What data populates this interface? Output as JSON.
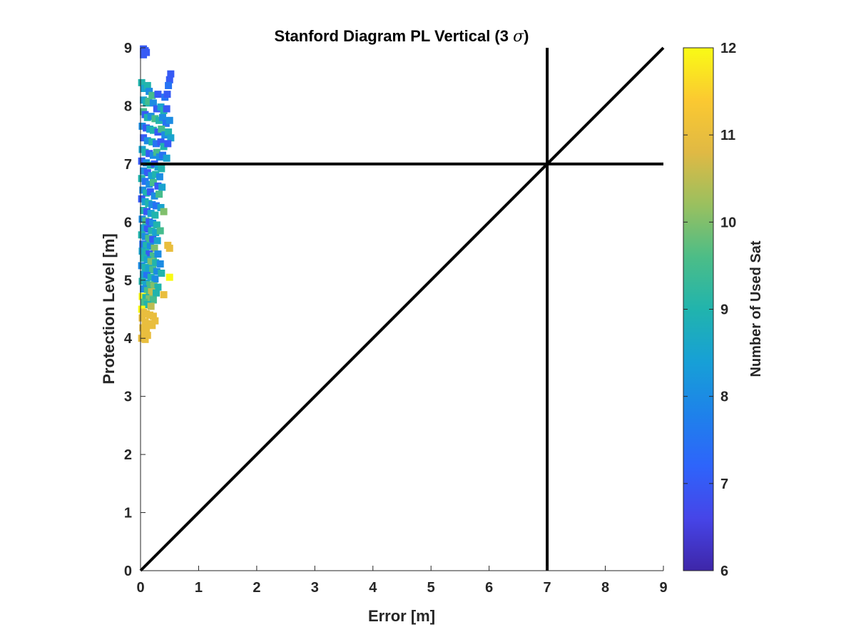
{
  "chart_data": {
    "type": "scatter",
    "title": "Stanford Diagram PL Vertical (3",
    "title_symbol": "σ",
    "title_suffix": ")",
    "xlabel": "Error [m]",
    "ylabel": "Protection Level [m]",
    "xlim": [
      0,
      9
    ],
    "ylim": [
      0,
      9
    ],
    "xticks": [
      "0",
      "1",
      "2",
      "3",
      "4",
      "5",
      "6",
      "7",
      "8",
      "9"
    ],
    "yticks": [
      "0",
      "1",
      "2",
      "3",
      "4",
      "5",
      "6",
      "7",
      "8",
      "9"
    ],
    "alert_limit": 7,
    "reference_lines": [
      {
        "kind": "diagonal",
        "from": [
          0,
          0
        ],
        "to": [
          9,
          9
        ]
      },
      {
        "kind": "vertical",
        "x": 7
      },
      {
        "kind": "horizontal",
        "y": 7
      }
    ],
    "colorbar": {
      "label": "Number of Used Sat",
      "range": [
        6,
        12
      ],
      "ticks": [
        "6",
        "7",
        "8",
        "9",
        "10",
        "11",
        "12"
      ],
      "colormap": "parula"
    },
    "points": [
      [
        0.05,
        8.98,
        7
      ],
      [
        0.08,
        8.95,
        7
      ],
      [
        0.05,
        8.88,
        7
      ],
      [
        0.1,
        8.92,
        7
      ],
      [
        0.52,
        8.55,
        7
      ],
      [
        0.5,
        8.45,
        7
      ],
      [
        0.48,
        8.35,
        7.5
      ],
      [
        0.02,
        8.4,
        9
      ],
      [
        0.06,
        8.3,
        8.5
      ],
      [
        0.12,
        8.35,
        9
      ],
      [
        0.15,
        8.25,
        8
      ],
      [
        0.2,
        8.18,
        9.5
      ],
      [
        0.3,
        8.2,
        7
      ],
      [
        0.42,
        8.15,
        7.5
      ],
      [
        0.46,
        8.2,
        7
      ],
      [
        0.05,
        8.1,
        8.5
      ],
      [
        0.1,
        8.05,
        9
      ],
      [
        0.14,
        8.08,
        9.5
      ],
      [
        0.22,
        8.05,
        8
      ],
      [
        0.28,
        7.95,
        7
      ],
      [
        0.35,
        7.98,
        8.5
      ],
      [
        0.4,
        7.92,
        9
      ],
      [
        0.45,
        7.95,
        7
      ],
      [
        0.05,
        7.9,
        9.5
      ],
      [
        0.08,
        7.85,
        7
      ],
      [
        0.12,
        7.8,
        9
      ],
      [
        0.18,
        7.82,
        8
      ],
      [
        0.25,
        7.78,
        9.5
      ],
      [
        0.32,
        7.75,
        9
      ],
      [
        0.38,
        7.8,
        8
      ],
      [
        0.44,
        7.7,
        7.5
      ],
      [
        0.5,
        7.75,
        8
      ],
      [
        0.03,
        7.65,
        8
      ],
      [
        0.1,
        7.62,
        7
      ],
      [
        0.16,
        7.6,
        8.5
      ],
      [
        0.22,
        7.58,
        9
      ],
      [
        0.3,
        7.55,
        7
      ],
      [
        0.36,
        7.6,
        9.5
      ],
      [
        0.42,
        7.5,
        8
      ],
      [
        0.48,
        7.55,
        9
      ],
      [
        0.52,
        7.45,
        8.5
      ],
      [
        0.05,
        7.45,
        7
      ],
      [
        0.12,
        7.4,
        8
      ],
      [
        0.2,
        7.38,
        9
      ],
      [
        0.27,
        7.35,
        7.5
      ],
      [
        0.35,
        7.38,
        7
      ],
      [
        0.4,
        7.3,
        9
      ],
      [
        0.47,
        7.35,
        7
      ],
      [
        0.03,
        7.25,
        8.5
      ],
      [
        0.08,
        7.2,
        9
      ],
      [
        0.15,
        7.18,
        7
      ],
      [
        0.22,
        7.15,
        8
      ],
      [
        0.28,
        7.2,
        9.5
      ],
      [
        0.33,
        7.12,
        8
      ],
      [
        0.38,
        7.15,
        7.5
      ],
      [
        0.45,
        7.1,
        8.5
      ],
      [
        0.02,
        7.05,
        7
      ],
      [
        0.1,
        7.02,
        8
      ],
      [
        0.17,
        6.98,
        9
      ],
      [
        0.24,
        7.0,
        7
      ],
      [
        0.3,
        6.95,
        8.5
      ],
      [
        0.36,
        6.92,
        9
      ],
      [
        0.05,
        6.88,
        8
      ],
      [
        0.12,
        6.85,
        7
      ],
      [
        0.19,
        6.8,
        8.5
      ],
      [
        0.26,
        6.82,
        9
      ],
      [
        0.33,
        6.78,
        8
      ],
      [
        0.02,
        6.75,
        9
      ],
      [
        0.08,
        6.7,
        7.5
      ],
      [
        0.15,
        6.65,
        8
      ],
      [
        0.22,
        6.68,
        9.5
      ],
      [
        0.3,
        6.62,
        7
      ],
      [
        0.37,
        6.6,
        8.5
      ],
      [
        0.04,
        6.55,
        8
      ],
      [
        0.1,
        6.5,
        9
      ],
      [
        0.17,
        6.52,
        7
      ],
      [
        0.24,
        6.45,
        8
      ],
      [
        0.32,
        6.48,
        9.5
      ],
      [
        0.02,
        6.4,
        7
      ],
      [
        0.08,
        6.35,
        8.5
      ],
      [
        0.14,
        6.32,
        9
      ],
      [
        0.2,
        6.3,
        8
      ],
      [
        0.27,
        6.28,
        7.5
      ],
      [
        0.35,
        6.25,
        8.5
      ],
      [
        0.05,
        6.2,
        9
      ],
      [
        0.11,
        6.18,
        7
      ],
      [
        0.18,
        6.15,
        8.5
      ],
      [
        0.25,
        6.12,
        9
      ],
      [
        0.4,
        6.18,
        10
      ],
      [
        0.03,
        6.05,
        8
      ],
      [
        0.09,
        6.02,
        9.5
      ],
      [
        0.15,
        6.0,
        7
      ],
      [
        0.21,
        5.98,
        8
      ],
      [
        0.28,
        5.95,
        9
      ],
      [
        0.05,
        5.9,
        8.5
      ],
      [
        0.12,
        5.88,
        7
      ],
      [
        0.19,
        5.85,
        9
      ],
      [
        0.26,
        5.82,
        8.5
      ],
      [
        0.34,
        5.85,
        9.5
      ],
      [
        0.02,
        5.78,
        9
      ],
      [
        0.08,
        5.75,
        8
      ],
      [
        0.14,
        5.72,
        9.5
      ],
      [
        0.21,
        5.7,
        7
      ],
      [
        0.29,
        5.68,
        8.5
      ],
      [
        0.04,
        5.62,
        7.5
      ],
      [
        0.1,
        5.6,
        9
      ],
      [
        0.17,
        5.58,
        8
      ],
      [
        0.24,
        5.55,
        10
      ],
      [
        0.47,
        5.6,
        11
      ],
      [
        0.5,
        5.55,
        11
      ],
      [
        0.03,
        5.5,
        8.5
      ],
      [
        0.09,
        5.48,
        9
      ],
      [
        0.15,
        5.45,
        7
      ],
      [
        0.22,
        5.42,
        9.5
      ],
      [
        0.3,
        5.45,
        8
      ],
      [
        0.05,
        5.38,
        9
      ],
      [
        0.12,
        5.35,
        8.5
      ],
      [
        0.18,
        5.32,
        10
      ],
      [
        0.26,
        5.3,
        9
      ],
      [
        0.34,
        5.28,
        8
      ],
      [
        0.02,
        5.25,
        8
      ],
      [
        0.08,
        5.22,
        9
      ],
      [
        0.14,
        5.2,
        8.5
      ],
      [
        0.21,
        5.18,
        9.5
      ],
      [
        0.28,
        5.15,
        8
      ],
      [
        0.36,
        5.12,
        9
      ],
      [
        0.05,
        5.1,
        8.5
      ],
      [
        0.11,
        5.08,
        7.5
      ],
      [
        0.18,
        5.05,
        9
      ],
      [
        0.25,
        5.02,
        8
      ],
      [
        0.5,
        5.05,
        12
      ],
      [
        0.03,
        4.98,
        9
      ],
      [
        0.1,
        4.95,
        8.5
      ],
      [
        0.16,
        4.92,
        9.5
      ],
      [
        0.23,
        4.9,
        10
      ],
      [
        0.3,
        4.88,
        9
      ],
      [
        0.05,
        4.85,
        8
      ],
      [
        0.12,
        4.82,
        9.5
      ],
      [
        0.19,
        4.8,
        10.5
      ],
      [
        0.27,
        4.78,
        9
      ],
      [
        0.4,
        4.75,
        11
      ],
      [
        0.03,
        4.72,
        12
      ],
      [
        0.09,
        4.7,
        9
      ],
      [
        0.15,
        4.68,
        10
      ],
      [
        0.22,
        4.66,
        9.5
      ],
      [
        0.06,
        4.62,
        9.5
      ],
      [
        0.12,
        4.58,
        9
      ],
      [
        0.18,
        4.55,
        10.5
      ],
      [
        0.02,
        4.5,
        12
      ],
      [
        0.05,
        4.45,
        11
      ],
      [
        0.1,
        4.42,
        11
      ],
      [
        0.16,
        4.4,
        11
      ],
      [
        0.22,
        4.38,
        11
      ],
      [
        0.25,
        4.3,
        11
      ],
      [
        0.03,
        4.35,
        11
      ],
      [
        0.08,
        4.28,
        11
      ],
      [
        0.14,
        4.25,
        11
      ],
      [
        0.2,
        4.22,
        11
      ],
      [
        0.04,
        4.18,
        11
      ],
      [
        0.1,
        4.15,
        11
      ],
      [
        0.06,
        4.08,
        11
      ],
      [
        0.12,
        4.05,
        11
      ],
      [
        0.02,
        4.0,
        11
      ],
      [
        0.08,
        3.98,
        11
      ]
    ]
  }
}
